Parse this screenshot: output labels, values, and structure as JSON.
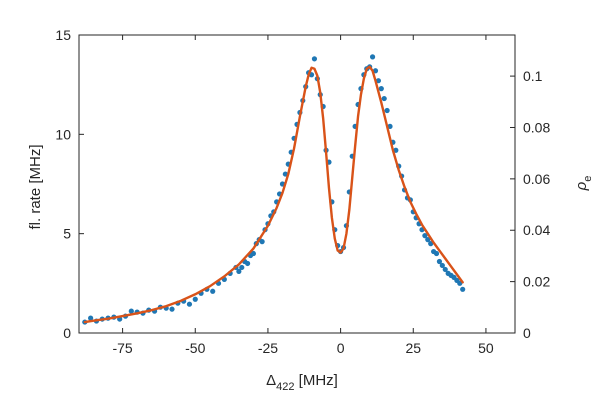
{
  "chart_data": {
    "type": "scatter",
    "xlabel_main": "Δ",
    "xlabel_sub": "422",
    "xlabel_unit": " [MHz]",
    "ylabel": "fl. rate [MHz]",
    "y2label_main": "ρ",
    "y2label_sub": "e",
    "xlim": [
      -90,
      60
    ],
    "ylim": [
      0,
      15
    ],
    "y2lim": [
      0,
      0.116
    ],
    "x_ticks": [
      -75,
      -50,
      -25,
      0,
      25,
      50
    ],
    "x_tick_labels": [
      "-75",
      "-50",
      "-25",
      "0",
      "25",
      "50"
    ],
    "y_ticks": [
      0,
      5,
      10,
      15
    ],
    "y_tick_labels": [
      "0",
      "5",
      "10",
      "15"
    ],
    "y2_ticks": [
      0,
      0.02,
      0.04,
      0.06,
      0.08,
      0.1
    ],
    "y2_tick_labels": [
      "0",
      "0.02",
      "0.04",
      "0.06",
      "0.08",
      "0.1"
    ],
    "grid": false,
    "colors": {
      "data": "#1f77b4",
      "fit": "#d95319",
      "axis": "#262626"
    },
    "series": [
      {
        "kind": "points",
        "x": [
          -88,
          -86,
          -84,
          -82,
          -80,
          -78,
          -76,
          -74,
          -72,
          -70,
          -68,
          -66,
          -64,
          -62,
          -60,
          -58,
          -56,
          -54,
          -52,
          -50,
          -48,
          -46,
          -44,
          -42,
          -40,
          -38,
          -36,
          -35,
          -34,
          -33,
          -32,
          -31,
          -30,
          -29,
          -28,
          -27,
          -26,
          -25,
          -24,
          -23,
          -22,
          -21,
          -20,
          -19,
          -18,
          -17,
          -16,
          -15,
          -14,
          -13,
          -12,
          -11,
          -10,
          -9,
          -8,
          -7,
          -6,
          -5,
          -4,
          -3,
          -2,
          -1,
          0,
          1,
          2,
          3,
          4,
          5,
          6,
          7,
          8,
          9,
          10,
          11,
          12,
          13,
          14,
          15,
          16,
          17,
          18,
          19,
          20,
          21,
          22,
          23,
          24,
          25,
          26,
          27,
          28,
          29,
          30,
          31,
          32,
          33,
          34,
          35,
          36,
          37,
          38,
          39,
          40,
          41,
          42
        ],
        "y": [
          0.55,
          0.75,
          0.6,
          0.7,
          0.75,
          0.8,
          0.7,
          0.85,
          1.1,
          1.05,
          1.0,
          1.15,
          1.1,
          1.3,
          1.25,
          1.2,
          1.5,
          1.6,
          1.45,
          1.7,
          2.0,
          2.2,
          2.1,
          2.5,
          2.7,
          3.0,
          3.3,
          3.1,
          3.3,
          3.6,
          3.5,
          3.9,
          4.0,
          4.5,
          4.7,
          4.6,
          5.2,
          5.5,
          5.9,
          6.1,
          6.6,
          7.0,
          7.5,
          8.0,
          8.5,
          9.1,
          9.8,
          10.5,
          11.1,
          11.7,
          12.4,
          13.1,
          13.0,
          13.8,
          12.8,
          12.0,
          11.4,
          9.2,
          8.6,
          6.6,
          5.2,
          4.4,
          4.1,
          4.3,
          5.4,
          7.1,
          8.9,
          10.4,
          11.5,
          12.3,
          13.0,
          13.3,
          13.4,
          13.9,
          13.2,
          12.7,
          12.3,
          11.8,
          11.2,
          10.4,
          9.6,
          9.2,
          8.4,
          7.9,
          7.2,
          6.8,
          6.7,
          6.1,
          5.8,
          5.5,
          5.2,
          4.9,
          4.7,
          4.5,
          4.1,
          4.0,
          3.6,
          3.4,
          3.2,
          3.0,
          2.9,
          2.8,
          2.65,
          2.5,
          2.2
        ]
      },
      {
        "kind": "fit",
        "x": [
          -88,
          -85,
          -80,
          -75,
          -70,
          -65,
          -60,
          -55,
          -50,
          -45,
          -40,
          -35,
          -30,
          -25,
          -22,
          -20,
          -18,
          -16,
          -14,
          -12,
          -11,
          -10,
          -9,
          -8,
          -7,
          -6,
          -5,
          -4,
          -3,
          -2,
          -1,
          0,
          1,
          2,
          3,
          4,
          5,
          6,
          7,
          8,
          9,
          10,
          11,
          12,
          14,
          16,
          18,
          20,
          22,
          24,
          26,
          28,
          30,
          32,
          34,
          36,
          38,
          40,
          42
        ],
        "y": [
          0.55,
          0.62,
          0.72,
          0.85,
          0.99,
          1.15,
          1.35,
          1.62,
          1.95,
          2.35,
          2.85,
          3.45,
          4.25,
          5.4,
          6.3,
          7.05,
          8.0,
          9.3,
          10.9,
          12.4,
          13.0,
          13.35,
          13.3,
          12.95,
          12.1,
          10.8,
          9.1,
          7.3,
          5.8,
          4.75,
          4.15,
          4.05,
          4.25,
          5.0,
          6.2,
          7.8,
          9.4,
          10.9,
          12.0,
          12.8,
          13.3,
          13.4,
          13.2,
          12.7,
          11.6,
          10.4,
          9.2,
          8.2,
          7.35,
          6.6,
          6.0,
          5.45,
          5.0,
          4.55,
          4.15,
          3.75,
          3.35,
          2.95,
          2.55
        ]
      }
    ]
  }
}
